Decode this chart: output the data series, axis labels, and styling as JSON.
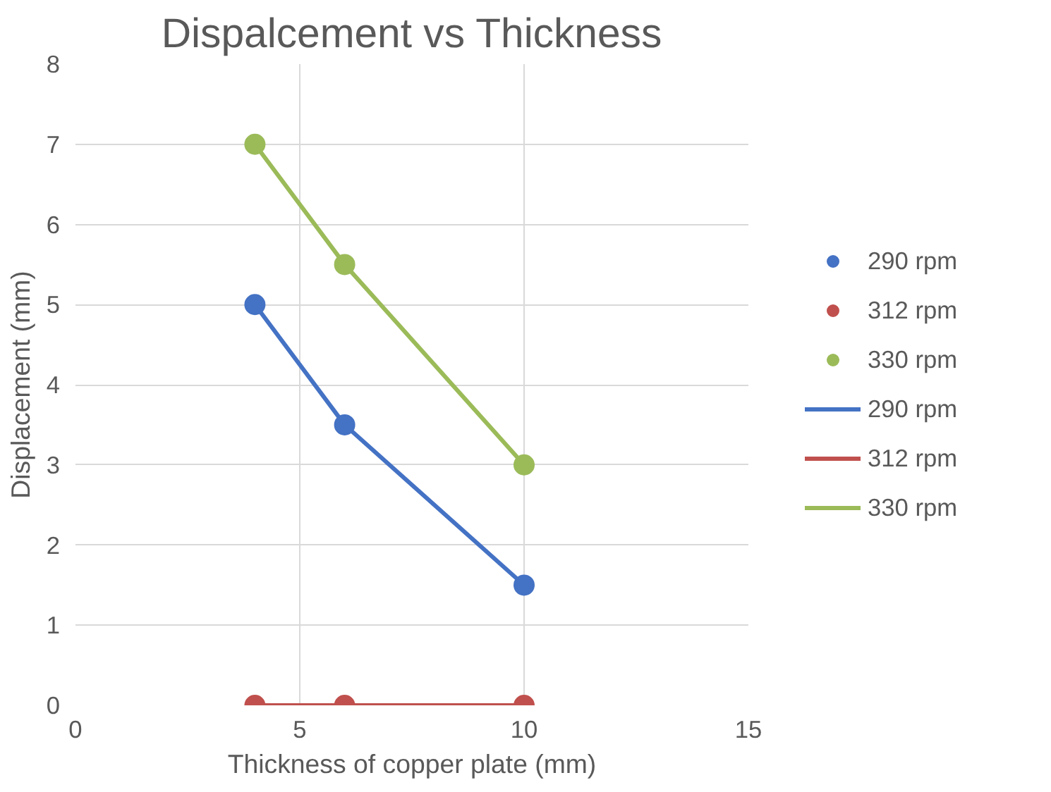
{
  "chart_data": {
    "type": "line",
    "title": "Dispalcement vs Thickness",
    "xlabel": "Thickness of copper plate (mm)",
    "ylabel": "Displacement (mm)",
    "x": [
      4,
      6,
      10
    ],
    "series": [
      {
        "name": "290 rpm",
        "color": "#4472c4",
        "values": [
          5,
          3.5,
          1.5
        ]
      },
      {
        "name": "312 rpm",
        "color": "#c0504d",
        "values": [
          0,
          0,
          0
        ]
      },
      {
        "name": "330 rpm",
        "color": "#9bbb59",
        "values": [
          7,
          5.5,
          3
        ]
      }
    ],
    "xlim": [
      0,
      15
    ],
    "xticks": [
      0,
      5,
      10,
      15
    ],
    "ylim": [
      0,
      8
    ],
    "yticks": [
      0,
      1,
      2,
      3,
      4,
      5,
      6,
      7,
      8
    ],
    "grid": true,
    "legend": "right",
    "marker": "circle",
    "line_style": "solid"
  }
}
